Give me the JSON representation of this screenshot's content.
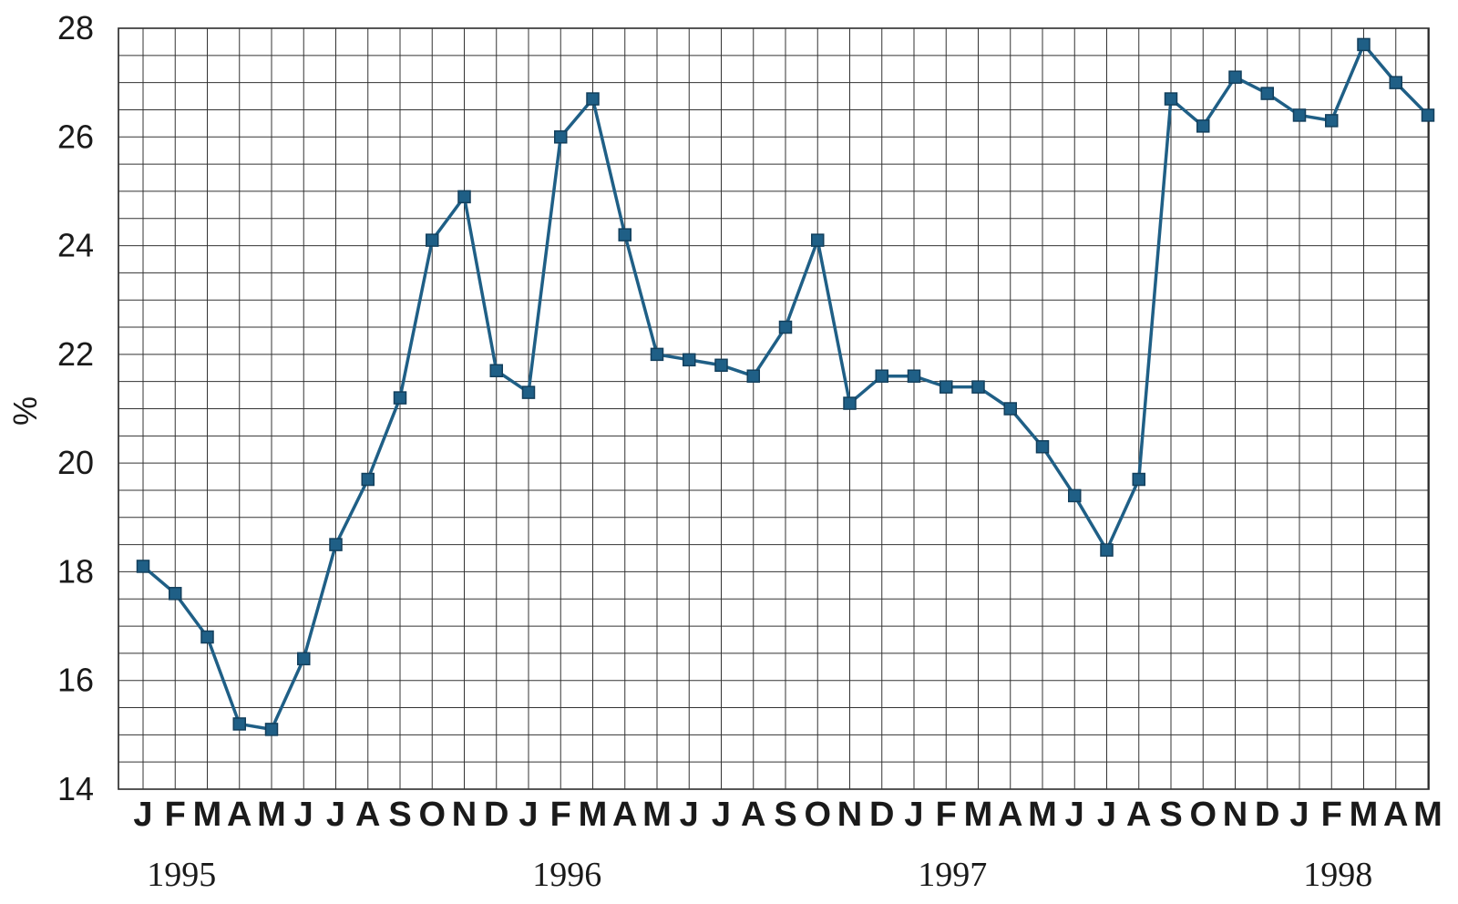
{
  "chart_data": {
    "type": "line",
    "ylabel": "%",
    "ylim": [
      14,
      28
    ],
    "yticks": [
      "14",
      "16",
      "18",
      "20",
      "22",
      "24",
      "26",
      "28"
    ],
    "grid": true,
    "x": [
      "J",
      "F",
      "M",
      "A",
      "M",
      "J",
      "J",
      "A",
      "S",
      "O",
      "N",
      "D",
      "J",
      "F",
      "M",
      "A",
      "M",
      "J",
      "J",
      "A",
      "S",
      "O",
      "N",
      "D",
      "J",
      "F",
      "M",
      "A",
      "M",
      "J",
      "J",
      "A",
      "S",
      "O",
      "N",
      "D",
      "J",
      "F",
      "M",
      "A",
      "M"
    ],
    "year_labels": [
      "1995",
      "1996",
      "1997",
      "1998"
    ],
    "series": [
      {
        "color": "#1f5f86",
        "marker": "square",
        "values": [
          18.1,
          17.6,
          16.8,
          15.2,
          15.1,
          16.4,
          18.5,
          19.7,
          21.2,
          24.1,
          24.9,
          21.7,
          21.3,
          26.0,
          26.7,
          24.2,
          22.0,
          21.9,
          21.8,
          21.6,
          22.5,
          24.1,
          21.1,
          21.6,
          21.6,
          21.4,
          21.4,
          21.0,
          20.3,
          19.4,
          18.4,
          19.7,
          26.7,
          26.2,
          27.1,
          26.8,
          26.4,
          26.3,
          27.7,
          27.0,
          26.4
        ]
      }
    ]
  }
}
